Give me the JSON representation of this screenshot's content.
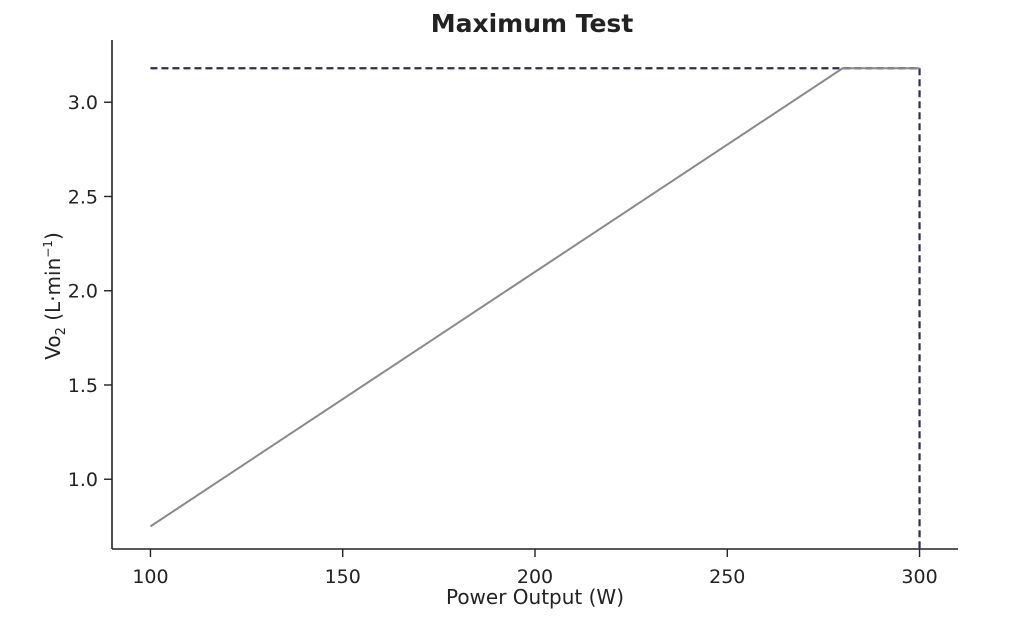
{
  "chart_data": {
    "type": "line",
    "title": "Maximum Test",
    "xlabel": "Power Output (W)",
    "ylabel": {
      "main": "Vo",
      "sub": "2",
      "unit_open": " (L·min",
      "unit_sup": "−1",
      "unit_close": ")"
    },
    "xlim": [
      90,
      310
    ],
    "ylim": [
      0.63,
      3.33
    ],
    "x_ticks": [
      100,
      150,
      200,
      250,
      300
    ],
    "x_tick_labels": [
      "100",
      "150",
      "200",
      "250",
      "300"
    ],
    "y_ticks": [
      1.0,
      1.5,
      2.0,
      2.5,
      3.0
    ],
    "y_tick_labels": [
      "1.0",
      "1.5",
      "2.0",
      "2.5",
      "3.0"
    ],
    "grid": false,
    "series": [
      {
        "x": [
          100,
          280,
          300
        ],
        "y": [
          0.75,
          3.18,
          3.18
        ],
        "color": "#8a8a8a"
      }
    ],
    "reference_lines": [
      {
        "kind": "horizontal",
        "y": 3.18,
        "x_from": 100,
        "x_to": 300,
        "style": "dashed",
        "color": "#2e2e4e"
      },
      {
        "kind": "vertical",
        "x": 300,
        "y_from": 3.18,
        "y_to": 0.63,
        "style": "dashed",
        "color": "#2e2e4e"
      }
    ]
  }
}
